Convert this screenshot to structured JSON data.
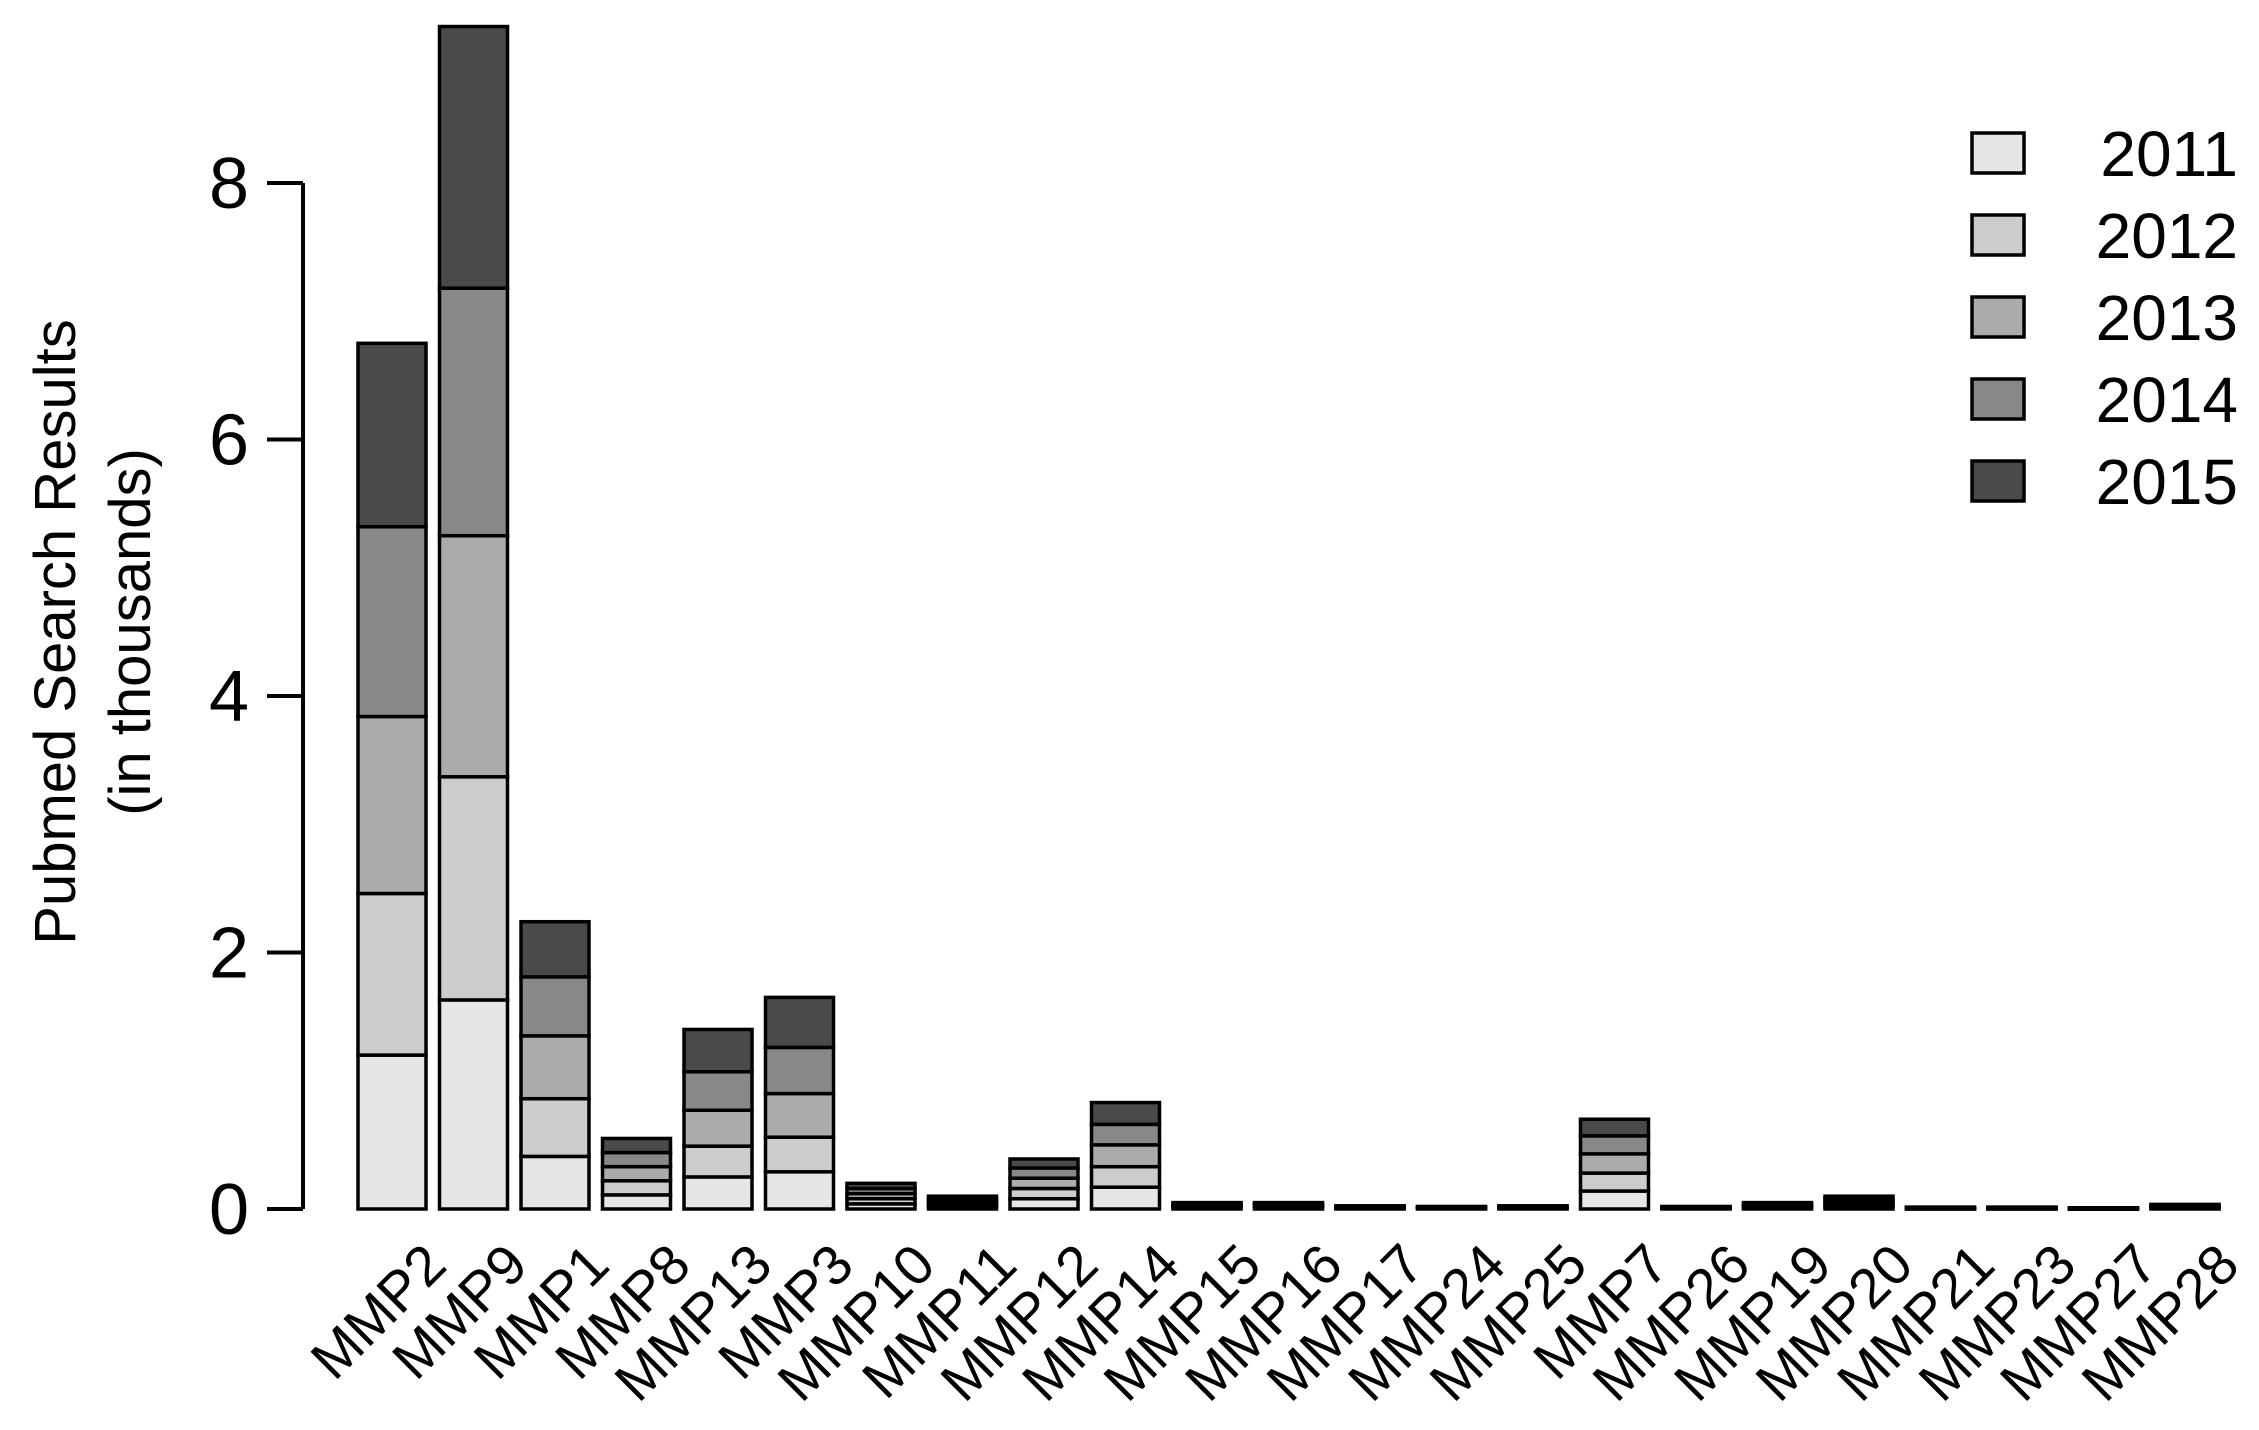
{
  "chart_data": {
    "type": "bar",
    "stacked": true,
    "title": "",
    "xlabel": "",
    "ylabel_line1": "Pubmed Search Results",
    "ylabel_line2": "(in thousands)",
    "ylim": [
      0,
      9.2
    ],
    "yticks": [
      "0",
      "2",
      "4",
      "6",
      "8"
    ],
    "grid": false,
    "legend_position": "top-right",
    "categories": [
      "MMP2",
      "MMP9",
      "MMP1",
      "MMP8",
      "MMP13",
      "MMP3",
      "MMP10",
      "MMP11",
      "MMP12",
      "MMP14",
      "MMP15",
      "MMP16",
      "MMP17",
      "MMP24",
      "MMP25",
      "MMP7",
      "MMP26",
      "MMP19",
      "MMP20",
      "MMP21",
      "MMP23",
      "MMP27",
      "MMP28"
    ],
    "series": [
      {
        "name": "2011",
        "color": "#e6e6e6",
        "values": [
          1.2,
          1.63,
          0.41,
          0.11,
          0.25,
          0.29,
          0.04,
          0.02,
          0.08,
          0.17,
          0.01,
          0.01,
          0.005,
          0.004,
          0.005,
          0.14,
          0.004,
          0.01,
          0.02,
          0.003,
          0.003,
          0.002,
          0.007
        ]
      },
      {
        "name": "2012",
        "color": "#cccccc",
        "values": [
          1.26,
          1.74,
          0.45,
          0.11,
          0.24,
          0.27,
          0.04,
          0.02,
          0.08,
          0.16,
          0.01,
          0.01,
          0.005,
          0.004,
          0.005,
          0.14,
          0.004,
          0.01,
          0.02,
          0.003,
          0.003,
          0.002,
          0.007
        ]
      },
      {
        "name": "2013",
        "color": "#ababab",
        "values": [
          1.38,
          1.88,
          0.49,
          0.11,
          0.28,
          0.34,
          0.04,
          0.02,
          0.08,
          0.17,
          0.01,
          0.01,
          0.005,
          0.004,
          0.005,
          0.15,
          0.004,
          0.01,
          0.02,
          0.003,
          0.003,
          0.002,
          0.007
        ]
      },
      {
        "name": "2014",
        "color": "#888888",
        "values": [
          1.48,
          1.93,
          0.46,
          0.11,
          0.3,
          0.36,
          0.04,
          0.02,
          0.08,
          0.16,
          0.01,
          0.01,
          0.005,
          0.004,
          0.005,
          0.14,
          0.004,
          0.01,
          0.02,
          0.003,
          0.003,
          0.002,
          0.007
        ]
      },
      {
        "name": "2015",
        "color": "#4a4a4a",
        "values": [
          1.43,
          2.04,
          0.43,
          0.11,
          0.33,
          0.39,
          0.04,
          0.02,
          0.07,
          0.17,
          0.01,
          0.01,
          0.005,
          0.004,
          0.005,
          0.13,
          0.004,
          0.01,
          0.02,
          0.003,
          0.003,
          0.002,
          0.008
        ]
      }
    ]
  }
}
